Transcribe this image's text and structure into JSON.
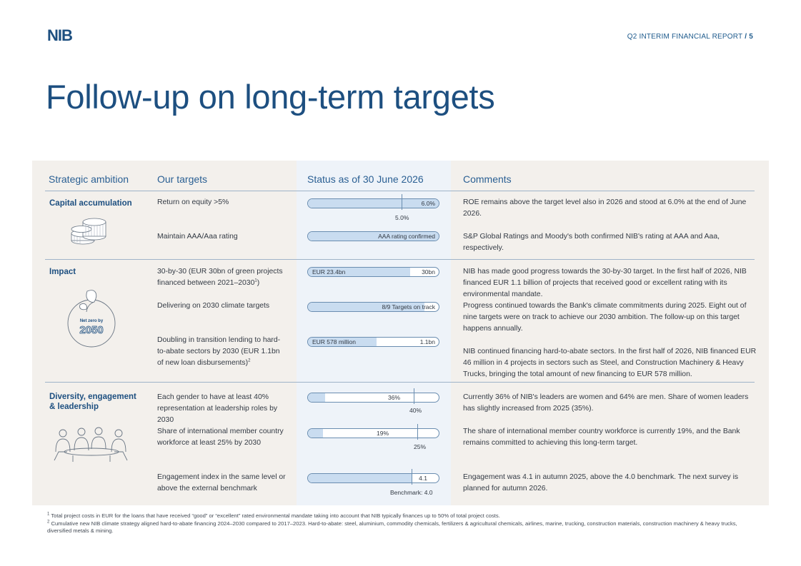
{
  "header": {
    "logo_text": "NIB",
    "report_label": "Q2 INTERIM FINANCIAL REPORT",
    "page_sep": " / ",
    "page_number": "5"
  },
  "title": "Follow-up on long-term targets",
  "columns": {
    "ambition": "Strategic ambition",
    "targets": "Our targets",
    "status": "Status as of 30 June 2026",
    "comments": "Comments"
  },
  "sections": [
    {
      "ambition": "Capital accumulation",
      "rows": [
        {
          "target": "Return on equity >5%",
          "bar_left": "",
          "bar_right": "6.0%",
          "fill": 1.0,
          "tick_label": "5.0%",
          "comment": "ROE remains above the target level also in 2026 and stood at 6.0% at the end of June 2026."
        },
        {
          "target": "Maintain AAA/Aaa rating",
          "bar_right": "AAA rating confirmed",
          "fill": 1.0,
          "comment": "S&P Global Ratings and Moody's both confirmed NIB's rating at AAA and Aaa, respectively."
        }
      ]
    },
    {
      "ambition": "Impact",
      "illustration_label": "Net zero by",
      "illustration_year": "2050",
      "rows": [
        {
          "target": "30-by-30 (EUR 30bn of green projects financed between 2021–2030",
          "target_note": "1",
          "target_end": ")",
          "bar_left": "EUR 23.4bn",
          "bar_right": "30bn",
          "fill": 0.78,
          "comment": "NIB has made good progress towards the 30-by-30 target. In the first half of 2026, NIB financed EUR 1.1 billion of projects that received good or excellent rating with its environmental mandate."
        },
        {
          "target": "Delivering on 2030 climate targets",
          "bar_right": "8/9 Targets on track",
          "fill": 0.889,
          "comment": "Progress continued towards the Bank's climate commitments during 2025. Eight out of nine targets were on track to achieve our 2030 ambition. The follow-up on this target happens annually."
        },
        {
          "target": "Doubling in transition lending to hard-to-abate sectors by 2030 (EUR 1.1bn of new loan disbursements)",
          "target_note": "2",
          "bar_left": "EUR 578 million",
          "bar_right": "1.1bn",
          "fill": 0.525,
          "comment": "NIB continued financing hard-to-abate sectors. In the first half of 2026, NIB financed EUR 46 million in 4 projects in sectors such as Steel, and Construction Machinery & Heavy Trucks, bringing the total amount of new financing to EUR 578 million."
        }
      ]
    },
    {
      "ambition": "Diversity, engagement & leadership",
      "rows": [
        {
          "target": "Each gender to have at least 40% representation at leadership roles by 2030",
          "bar_value": "36%",
          "fill": 0.36,
          "tick_label": "40%",
          "comment": "Currently 36% of NIB's leaders are women and 64% are men. Share of women leaders has slightly increased from 2025 (35%)."
        },
        {
          "target": "Share of international member country workforce at least 25% by 2030",
          "bar_value": "19%",
          "fill": 0.19,
          "tick_label": "25%",
          "comment": "The share of international member country workforce is currently 19%, and the Bank remains committed to achieving this long-term target."
        },
        {
          "target": "Engagement index in the same level or above the external benchmark",
          "bar_value": "4.1",
          "fill": 4.1,
          "tick_label": "Benchmark: 4.0",
          "comment": "Engagement was 4.1 in autumn 2025, above the 4.0 benchmark. The next survey is planned for autumn 2026."
        }
      ]
    }
  ],
  "footnotes": [
    "Total project costs in EUR for the loans that have received “good” or “excellent” rated environmental mandate taking into account that NIB typically finances up to 50% of total project costs.",
    "Cumulative new NIB climate strategy aligned hard-to-abate financing 2024–2030 compared to 2017–2023. Hard-to-abate: steel, aluminium, commodity chemicals, fertilizers & agricultural chemicals, airlines, marine, trucking, construction materials, construction machinery & heavy trucks, diversified metals & mining."
  ],
  "footnote_marks": [
    "1",
    "2"
  ],
  "colors": {
    "brand": "#1d4f80",
    "bar_fill": "#c9dcf0",
    "panel": "#f3f0ec",
    "status_panel": "#eef3f9"
  }
}
